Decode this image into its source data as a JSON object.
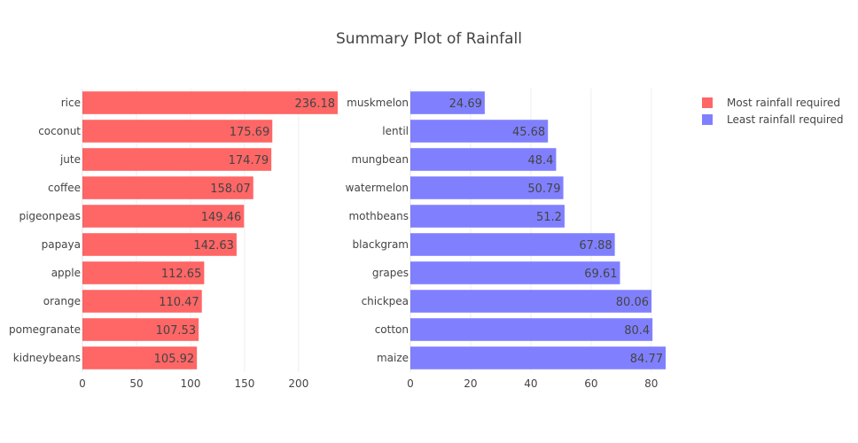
{
  "chart_data": {
    "type": "bar",
    "title": "Summary Plot of Rainfall",
    "colors": {
      "most": "#ff6666",
      "least": "#8080ff"
    },
    "legend": {
      "placement": "top-right",
      "entries": [
        "Most rainfall required",
        "Least rainfall required"
      ]
    },
    "panels": [
      {
        "name": "Most rainfall required",
        "orientation": "horizontal",
        "categories": [
          "rice",
          "coconut",
          "jute",
          "coffee",
          "pigeonpeas",
          "papaya",
          "apple",
          "orange",
          "pomegranate",
          "kidneybeans"
        ],
        "values": [
          236.18,
          175.69,
          174.79,
          158.07,
          149.46,
          142.63,
          112.65,
          110.47,
          107.53,
          105.92
        ],
        "labels": [
          "236.18",
          "175.69",
          "174.79",
          "158.07",
          "149.46",
          "142.63",
          "112.65",
          "110.47",
          "107.53",
          "105.92"
        ],
        "xlim": [
          0,
          236.18
        ],
        "xticks": [
          0,
          50,
          100,
          150,
          200
        ],
        "grid": true
      },
      {
        "name": "Least rainfall required",
        "orientation": "horizontal",
        "categories": [
          "muskmelon",
          "lentil",
          "mungbean",
          "watermelon",
          "mothbeans",
          "blackgram",
          "grapes",
          "chickpea",
          "cotton",
          "maize"
        ],
        "values": [
          24.69,
          45.68,
          48.4,
          50.79,
          51.2,
          67.88,
          69.61,
          80.06,
          80.4,
          84.77
        ],
        "labels": [
          "24.69",
          "45.68",
          "48.4",
          "50.79",
          "51.2",
          "67.88",
          "69.61",
          "80.06",
          "80.4",
          "84.77"
        ],
        "xlim": [
          0,
          84.77
        ],
        "xticks": [
          0,
          20,
          40,
          60,
          80
        ],
        "grid": true
      }
    ]
  }
}
